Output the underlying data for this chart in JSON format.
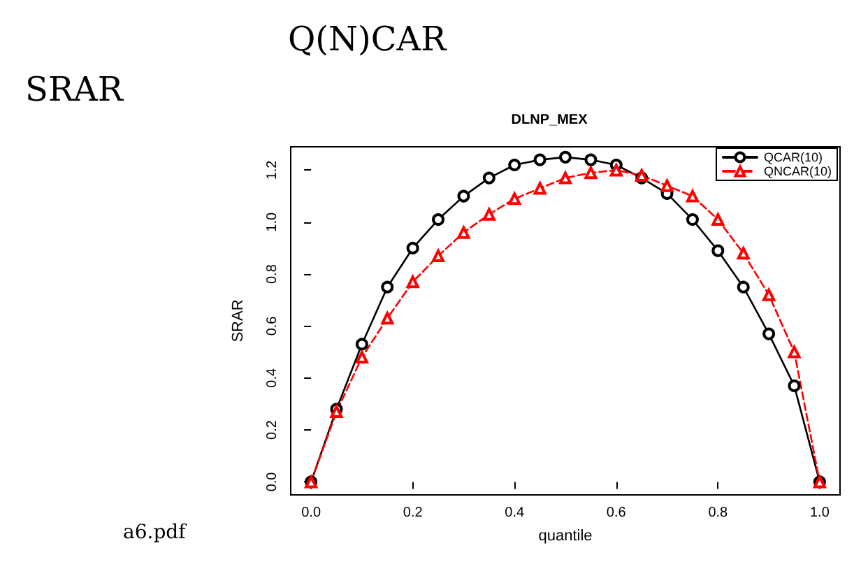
{
  "chart_data": {
    "type": "line",
    "title": "DLNP_MEX",
    "xlabel": "quantile",
    "ylabel": "SRAR",
    "annotations": [
      "Q(N)CAR",
      "SRAR",
      "a6.pdf"
    ],
    "x": [
      0,
      0.05,
      0.1,
      0.15,
      0.2,
      0.25,
      0.3,
      0.35,
      0.4,
      0.45,
      0.5,
      0.55,
      0.6,
      0.65,
      0.7,
      0.75,
      0.8,
      0.85,
      0.9,
      0.95,
      1
    ],
    "series": [
      {
        "name": "QCAR(10)",
        "color": "#000000",
        "marker": "circle",
        "line_style": "solid",
        "values": [
          0,
          0.28,
          0.53,
          0.75,
          0.9,
          1.01,
          1.1,
          1.17,
          1.22,
          1.24,
          1.25,
          1.24,
          1.22,
          1.17,
          1.11,
          1.01,
          0.89,
          0.75,
          0.57,
          0.37,
          0
        ]
      },
      {
        "name": "QNCAR(10)",
        "color": "#ff0000",
        "marker": "triangle",
        "line_style": "dashed",
        "values": [
          0,
          0.27,
          0.48,
          0.63,
          0.77,
          0.87,
          0.96,
          1.03,
          1.09,
          1.13,
          1.17,
          1.19,
          1.2,
          1.18,
          1.14,
          1.1,
          1.01,
          0.88,
          0.72,
          0.5,
          0
        ]
      }
    ],
    "xlim": [
      -0.04,
      1.04
    ],
    "ylim": [
      -0.05,
      1.29
    ],
    "xticks": [
      {
        "value": 0,
        "label": "0.0"
      },
      0.2,
      0.4,
      0.6,
      0.8,
      {
        "value": 1,
        "label": "1.0"
      }
    ],
    "yticks": [
      {
        "value": 0,
        "label": "0.0"
      },
      0.2,
      0.4,
      0.6,
      0.8,
      {
        "value": 1,
        "label": "1.0"
      },
      1.2
    ],
    "legend": "top right",
    "grid": false
  }
}
